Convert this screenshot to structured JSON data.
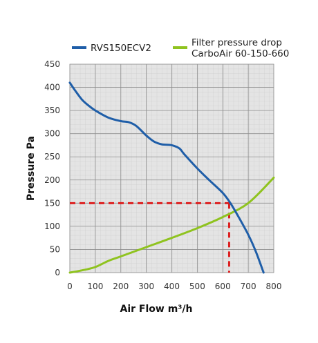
{
  "chart_data": {
    "type": "line",
    "xlabel": "Air Flow m³/h",
    "ylabel": "Pressure Pa",
    "xlim": [
      0,
      800
    ],
    "ylim": [
      0,
      450
    ],
    "x_ticks": [
      "0",
      "100",
      "200",
      "300",
      "400",
      "500",
      "600",
      "700",
      "800"
    ],
    "y_ticks": [
      "0",
      "50",
      "100",
      "150",
      "200",
      "250",
      "300",
      "350",
      "400",
      "450"
    ],
    "grid": true,
    "legend_position": "top",
    "series": [
      {
        "name": "RVS150ECV2",
        "color": "#1f5ea8",
        "x": [
          0,
          25,
          50,
          75,
          100,
          150,
          200,
          230,
          260,
          300,
          330,
          360,
          400,
          430,
          450,
          500,
          550,
          600,
          630,
          660,
          700,
          730,
          760
        ],
        "y": [
          410,
          390,
          372,
          360,
          350,
          335,
          327,
          325,
          317,
          296,
          283,
          277,
          275,
          268,
          255,
          225,
          198,
          172,
          150,
          122,
          82,
          45,
          0
        ]
      },
      {
        "name": "Filter pressure drop",
        "name_line2": "CarboAir 60-150-660",
        "color": "#8fc31f",
        "x": [
          0,
          50,
          100,
          150,
          200,
          300,
          400,
          500,
          600,
          700,
          800
        ],
        "y": [
          0,
          5,
          12,
          25,
          35,
          55,
          75,
          96,
          120,
          150,
          205
        ]
      }
    ],
    "operating_point": {
      "x": 625,
      "y": 150,
      "color": "#dd1f1f"
    }
  }
}
